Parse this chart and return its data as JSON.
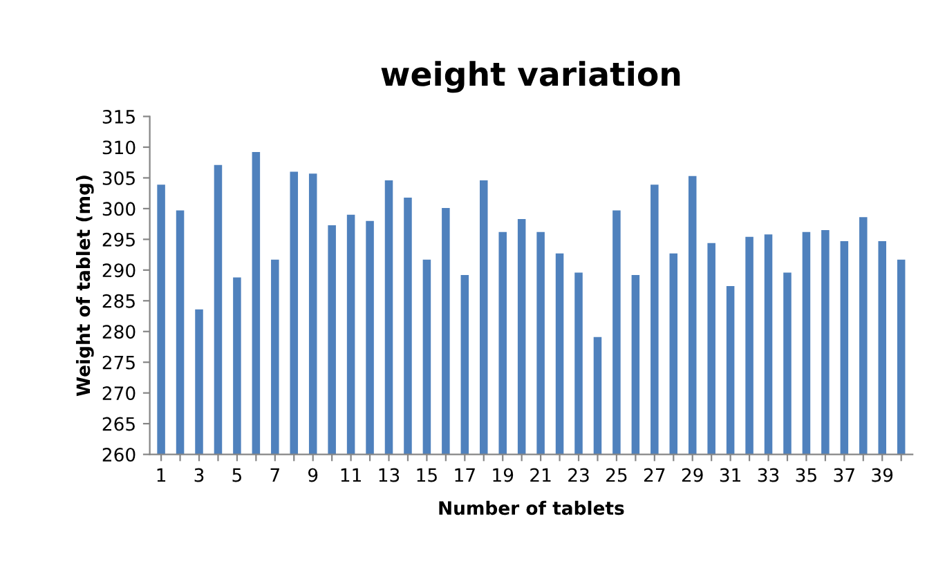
{
  "chart_data": {
    "type": "bar",
    "title": "weight variation",
    "xlabel": "Number of tablets",
    "ylabel": "Weight of tablet (mg)",
    "categories": [
      "1",
      null,
      "3",
      null,
      "5",
      null,
      "7",
      null,
      "9",
      null,
      "11",
      null,
      "13",
      null,
      "15",
      null,
      "17",
      null,
      "19",
      null,
      "21",
      null,
      "23",
      null,
      "25",
      null,
      "27",
      null,
      "29",
      null,
      "31",
      null,
      "33",
      null,
      "35",
      null,
      "37",
      null,
      "39",
      null
    ],
    "values": [
      303.9,
      299.7,
      283.6,
      307.1,
      288.8,
      309.2,
      291.7,
      306.0,
      305.7,
      297.3,
      299.0,
      298.0,
      304.6,
      301.8,
      291.7,
      300.1,
      289.2,
      304.6,
      296.2,
      298.3,
      296.2,
      292.7,
      289.6,
      279.1,
      299.7,
      289.2,
      303.9,
      292.7,
      305.3,
      294.4,
      287.4,
      295.4,
      295.8,
      289.6,
      296.2,
      296.5,
      294.7,
      298.6,
      294.7,
      291.7
    ],
    "color": "#4f81bd",
    "ylim": [
      260,
      315
    ],
    "yticks": [
      260,
      265,
      270,
      275,
      280,
      285,
      290,
      295,
      300,
      305,
      310,
      315
    ],
    "grid": false,
    "legend": false
  }
}
